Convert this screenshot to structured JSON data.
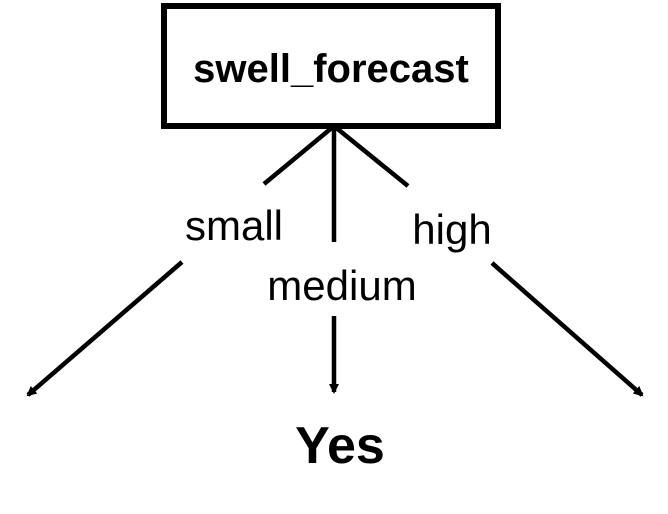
{
  "diagram": {
    "root": {
      "label": "swell_forecast"
    },
    "branches": [
      {
        "label": "small",
        "target": ""
      },
      {
        "label": "medium",
        "target": "Yes"
      },
      {
        "label": "high",
        "target": ""
      }
    ]
  },
  "colors": {
    "stroke": "#000000",
    "text": "#000000",
    "background": "#ffffff"
  }
}
